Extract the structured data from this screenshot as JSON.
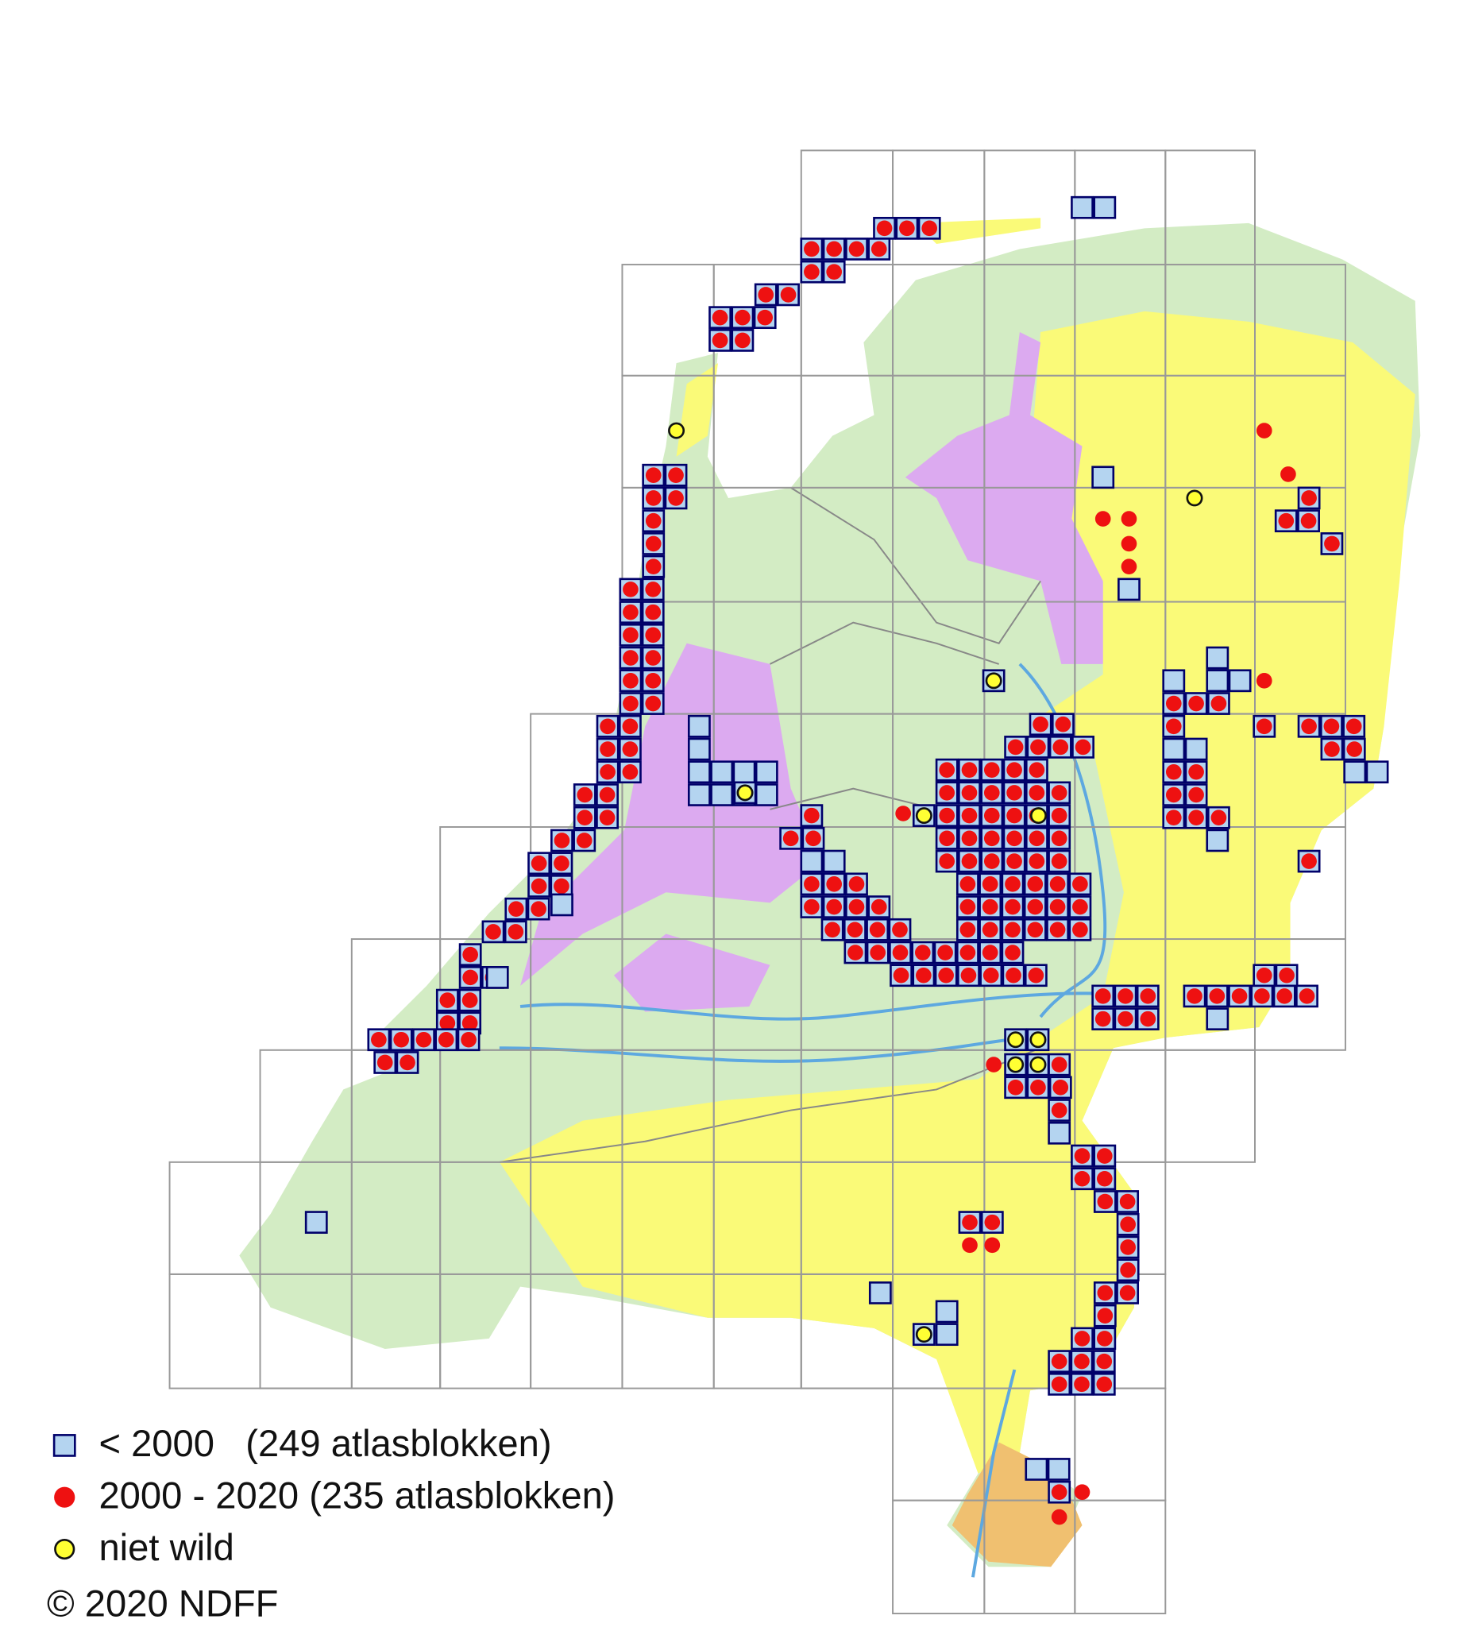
{
  "legend": [
    {
      "label": "< 2000   (249 atlasblokken)"
    },
    {
      "label": "2000 - 2020 (235 atlasblokken)"
    },
    {
      "label": "niet wild"
    }
  ],
  "copyright": "© 2020 NDFF"
}
